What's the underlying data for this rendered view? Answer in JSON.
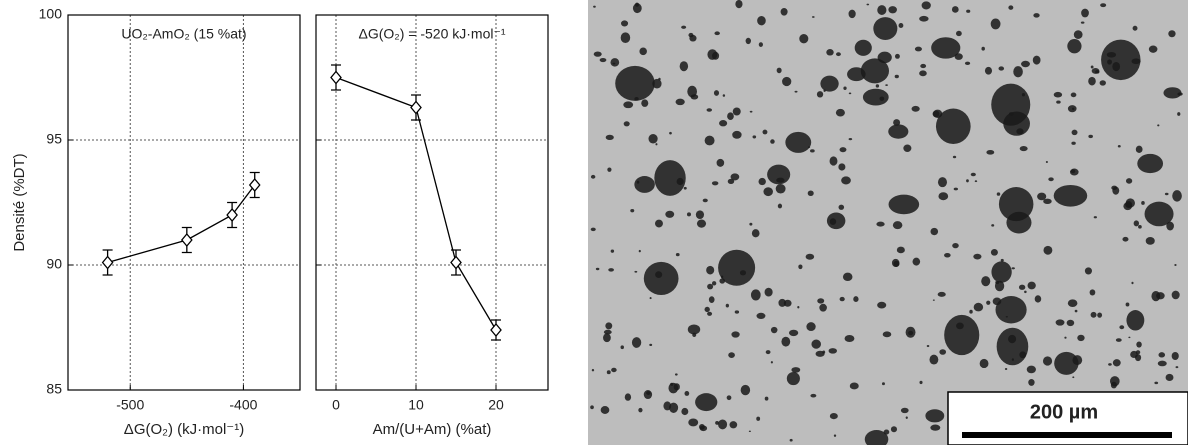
{
  "chart_data": [
    {
      "type": "line",
      "annotation": "UO₂-AmO₂ (15 %at)",
      "x_label": "ΔG(O₂) (kJ·mol⁻¹)",
      "y_label": "Densité (%DT)",
      "x": [
        -520,
        -450,
        -410,
        -390
      ],
      "series": [
        {
          "color": "#000000",
          "values": [
            90.1,
            91.0,
            92.0,
            93.2
          ],
          "errors": [
            0.5,
            0.5,
            0.5,
            0.5
          ]
        }
      ],
      "xlim": [
        -555,
        -350
      ],
      "xticks": [
        -500,
        -400
      ],
      "ylim": [
        85,
        100
      ],
      "yticks": [
        85,
        90,
        95,
        100
      ],
      "grid": true
    },
    {
      "type": "line",
      "annotation": "ΔG(O₂) = -520 kJ·mol⁻¹",
      "x_label": "Am/(U+Am) (%at)",
      "x": [
        0,
        10,
        15,
        20
      ],
      "series": [
        {
          "color": "#000000",
          "values": [
            97.5,
            96.3,
            90.1,
            87.4
          ],
          "errors": [
            0.5,
            0.5,
            0.5,
            0.4
          ]
        }
      ],
      "xlim": [
        -2.5,
        26.5
      ],
      "xticks": [
        0,
        10,
        20
      ],
      "grid": true
    }
  ],
  "image": {
    "scale_bar": "200 µm"
  }
}
